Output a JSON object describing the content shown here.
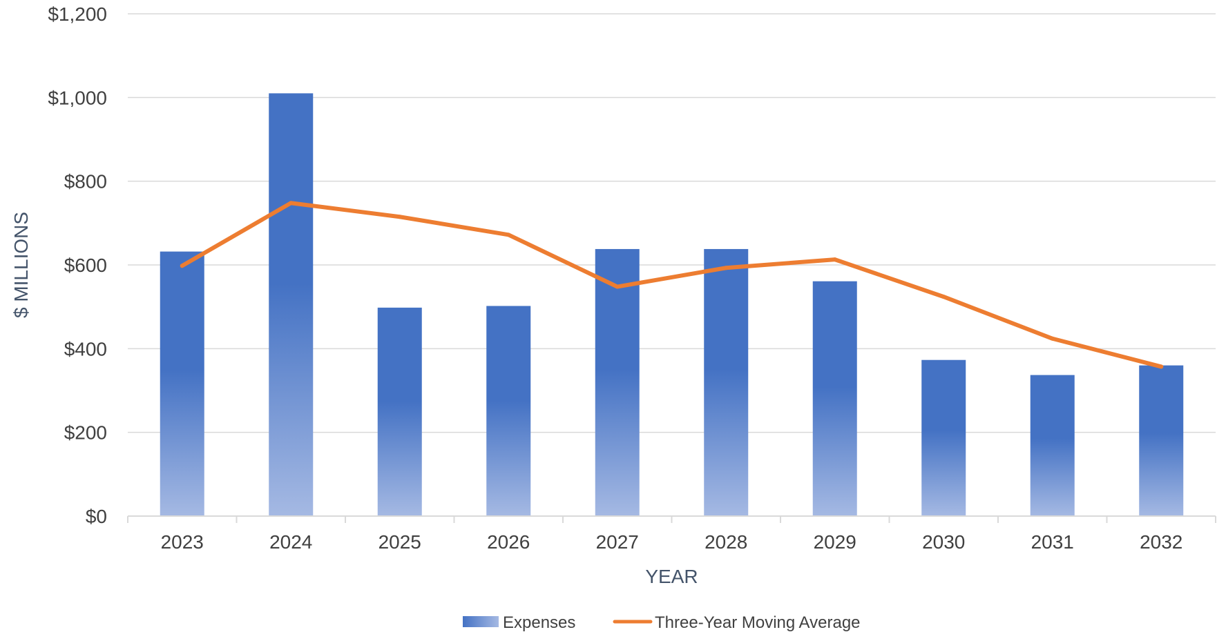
{
  "chart_data": {
    "type": "bar",
    "categories": [
      "2023",
      "2024",
      "2025",
      "2026",
      "2027",
      "2028",
      "2029",
      "2030",
      "2031",
      "2032"
    ],
    "series": [
      {
        "name": "Expenses",
        "type": "bar",
        "color": "#4472c4",
        "values": [
          632,
          1010,
          498,
          502,
          638,
          638,
          561,
          373,
          337,
          360
        ]
      },
      {
        "name": "Three-Year Moving Average",
        "type": "line",
        "color": "#ed7d31",
        "values": [
          598,
          748,
          715,
          672,
          548,
          593,
          613,
          524,
          424,
          357
        ]
      }
    ],
    "xlabel": "YEAR",
    "ylabel": "$ MILLIONS",
    "ylim": [
      0,
      1200
    ],
    "yticks": [
      0,
      200,
      400,
      600,
      800,
      1000,
      1200
    ],
    "ytick_labels": [
      "$0",
      "$200",
      "$400",
      "$600",
      "$800",
      "$1,000",
      "$1,200"
    ],
    "grid": true,
    "legend_position": "bottom"
  }
}
